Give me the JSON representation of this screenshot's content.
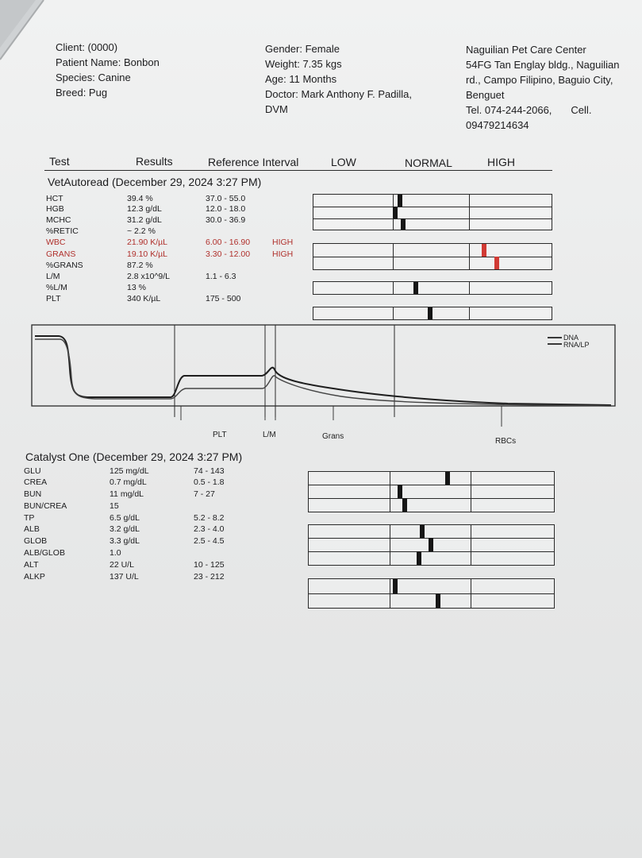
{
  "header": {
    "client": "Client:  (0000)",
    "patient": "Patient Name: Bonbon",
    "species": "Species: Canine",
    "breed": "Breed: Pug",
    "gender": "Gender: Female",
    "weight": "Weight: 7.35 kgs",
    "age": "Age: 11 Months",
    "doctor_line1": "Doctor: Mark Anthony F. Padilla,",
    "doctor_line2": "DVM",
    "clinic_lines": [
      "Naguilian Pet Care Center",
      "54FG Tan Englay bldg., Naguilian",
      "rd., Campo Filipino, Baguio City,",
      "Benguet",
      "Tel. 074-244-2066,",
      "09479214634"
    ],
    "cell_label": "Cell."
  },
  "columns": {
    "test": "Test",
    "results": "Results",
    "reference": "Reference Interval",
    "low": "LOW",
    "normal": "NORMAL",
    "high": "HIGH"
  },
  "vetautoread": {
    "title": "VetAutoread (December 29, 2024 3:27 PM)",
    "rows": [
      {
        "test": "HCT",
        "result": "39.4 %",
        "ref": "37.0 - 55.0",
        "flag": ""
      },
      {
        "test": "HGB",
        "result": "12.3 g/dL",
        "ref": "12.0 - 18.0",
        "flag": ""
      },
      {
        "test": "MCHC",
        "result": "31.2 g/dL",
        "ref": "30.0 - 36.9",
        "flag": ""
      },
      {
        "test": "%RETIC",
        "result": "~ 2.2 %",
        "ref": "",
        "flag": ""
      },
      {
        "test": "WBC",
        "result": "21.90 K/µL",
        "ref": "6.00 - 16.90",
        "flag": "HIGH"
      },
      {
        "test": "GRANS",
        "result": "19.10 K/µL",
        "ref": "3.30 - 12.00",
        "flag": "HIGH"
      },
      {
        "test": "%GRANS",
        "result": "87.2 %",
        "ref": "",
        "flag": ""
      },
      {
        "test": "L/M",
        "result": "2.8 x10^9/L",
        "ref": "1.1 - 6.3",
        "flag": ""
      },
      {
        "test": "%L/M",
        "result": "13 %",
        "ref": "",
        "flag": ""
      },
      {
        "test": "PLT",
        "result": "340 K/µL",
        "ref": "175 - 500",
        "flag": ""
      }
    ]
  },
  "histogram": {
    "legend": [
      "DNA",
      "RNA/LP"
    ],
    "markers": [
      "PLT",
      "L/M",
      "Grans",
      "RBCs"
    ]
  },
  "catalyst": {
    "title": "Catalyst One (December 29, 2024 3:27 PM)",
    "rows": [
      {
        "test": "GLU",
        "result": "125 mg/dL",
        "ref": "74 - 143"
      },
      {
        "test": "CREA",
        "result": "0.7 mg/dL",
        "ref": "0.5 - 1.8"
      },
      {
        "test": "BUN",
        "result": "11 mg/dL",
        "ref": "7 - 27"
      },
      {
        "test": "BUN/CREA",
        "result": "15",
        "ref": ""
      },
      {
        "test": "TP",
        "result": "6.5 g/dL",
        "ref": "5.2 - 8.2"
      },
      {
        "test": "ALB",
        "result": "3.2 g/dL",
        "ref": "2.3 - 4.0"
      },
      {
        "test": "GLOB",
        "result": "3.3 g/dL",
        "ref": "2.5 - 4.5"
      },
      {
        "test": "ALB/GLOB",
        "result": "1.0",
        "ref": ""
      },
      {
        "test": "ALT",
        "result": "22 U/L",
        "ref": "10 - 125"
      },
      {
        "test": "ALKP",
        "result": "137 U/L",
        "ref": "23 - 212"
      }
    ]
  },
  "colors": {
    "high_flag": "#b0302c",
    "marker": "#161616",
    "marker_high": "#d03a34"
  }
}
